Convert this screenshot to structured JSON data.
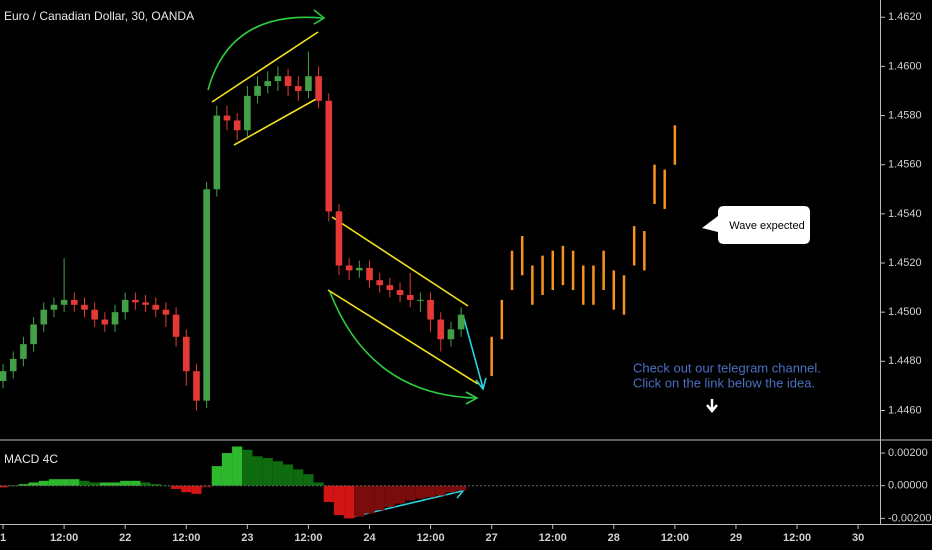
{
  "chart_data": [
    {
      "type": "candlestick",
      "title": "Euro / Canadian Dollar, 30, OANDA",
      "x": [
        0,
        2,
        4,
        6,
        8,
        10,
        12,
        14,
        16,
        18,
        20,
        22,
        24,
        26,
        28,
        30,
        32,
        34,
        36,
        38,
        40,
        42,
        44,
        46,
        48,
        50,
        52,
        54,
        56,
        58,
        60,
        62,
        64,
        66,
        68,
        70,
        72,
        74,
        76,
        78,
        80,
        82,
        84,
        86,
        88,
        90
      ],
      "open": [
        1.4472,
        1.4476,
        1.4481,
        1.4487,
        1.4495,
        1.4501,
        1.4503,
        1.4505,
        1.4503,
        1.4501,
        1.4497,
        1.4495,
        1.45,
        1.4505,
        1.4504,
        1.4503,
        1.4501,
        1.4499,
        1.449,
        1.4476,
        1.4464,
        1.455,
        1.458,
        1.4578,
        1.4574,
        1.4588,
        1.4592,
        1.4594,
        1.4596,
        1.4592,
        1.459,
        1.4596,
        1.4586,
        1.4541,
        1.4519,
        1.4517,
        1.4518,
        1.4513,
        1.4511,
        1.4509,
        1.4507,
        1.4505,
        1.4505,
        1.4497,
        1.4489,
        1.4493
      ],
      "high": [
        1.4479,
        1.4484,
        1.449,
        1.4498,
        1.4504,
        1.4506,
        1.4522,
        1.4508,
        1.4506,
        1.4504,
        1.45,
        1.4503,
        1.4508,
        1.4508,
        1.4507,
        1.4506,
        1.4504,
        1.4502,
        1.4493,
        1.4479,
        1.4553,
        1.4584,
        1.4584,
        1.4581,
        1.4592,
        1.4596,
        1.4598,
        1.46,
        1.4599,
        1.4596,
        1.4606,
        1.46,
        1.4589,
        1.4544,
        1.4522,
        1.4521,
        1.4521,
        1.4516,
        1.4514,
        1.4512,
        1.4516,
        1.4508,
        1.4508,
        1.45,
        1.4496,
        1.4502
      ],
      "low": [
        1.4469,
        1.4473,
        1.4478,
        1.4484,
        1.4492,
        1.4498,
        1.45,
        1.45,
        1.4498,
        1.4494,
        1.4492,
        1.4492,
        1.4497,
        1.4501,
        1.45,
        1.4498,
        1.4494,
        1.4486,
        1.447,
        1.446,
        1.4461,
        1.4547,
        1.4574,
        1.457,
        1.4571,
        1.4585,
        1.4589,
        1.459,
        1.4588,
        1.4586,
        1.4587,
        1.4583,
        1.4537,
        1.4515,
        1.4513,
        1.4514,
        1.451,
        1.4508,
        1.4506,
        1.4504,
        1.4502,
        1.45,
        1.4492,
        1.4484,
        1.4486,
        1.449
      ],
      "close": [
        1.4476,
        1.4481,
        1.4487,
        1.4495,
        1.4501,
        1.4503,
        1.4505,
        1.4503,
        1.4501,
        1.4497,
        1.4495,
        1.45,
        1.4505,
        1.4504,
        1.4503,
        1.4501,
        1.4499,
        1.449,
        1.4476,
        1.4464,
        1.455,
        1.458,
        1.4578,
        1.4574,
        1.4588,
        1.4592,
        1.4594,
        1.4596,
        1.4592,
        1.459,
        1.4596,
        1.4586,
        1.4541,
        1.4519,
        1.4517,
        1.4518,
        1.4513,
        1.4511,
        1.4509,
        1.4507,
        1.4505,
        1.4505,
        1.4497,
        1.4489,
        1.4493,
        1.4499
      ],
      "up_color": "#43a047",
      "down_color": "#e53935",
      "projection_x": [
        96,
        98,
        100,
        102,
        104,
        106,
        108,
        110,
        112,
        114,
        116,
        118,
        120,
        122,
        124,
        126,
        128,
        130,
        132
      ],
      "projection_high": [
        1.449,
        1.4505,
        1.4525,
        1.4531,
        1.4519,
        1.4523,
        1.4525,
        1.4527,
        1.4525,
        1.4519,
        1.4519,
        1.4525,
        1.4517,
        1.4515,
        1.4535,
        1.4533,
        1.456,
        1.4558,
        1.4576
      ],
      "projection_low": [
        1.4474,
        1.4489,
        1.4509,
        1.4515,
        1.4503,
        1.4507,
        1.4509,
        1.4511,
        1.4509,
        1.4503,
        1.4503,
        1.4509,
        1.4501,
        1.4499,
        1.4519,
        1.4517,
        1.4544,
        1.4542,
        1.456
      ],
      "projection_color": "#f7931e",
      "annotations": [
        "Wave expected",
        "Check out our telegram channel.",
        "Click on the link below the idea."
      ],
      "xlim": [
        -0.6,
        172.3
      ],
      "xticks": [
        {
          "value": 0,
          "label": "1"
        },
        {
          "value": 12,
          "label": "12:00"
        },
        {
          "value": 24,
          "label": "22"
        },
        {
          "value": 36,
          "label": "12:00"
        },
        {
          "value": 48,
          "label": "23"
        },
        {
          "value": 60,
          "label": "12:00"
        },
        {
          "value": 72,
          "label": "24"
        },
        {
          "value": 84,
          "label": "12:00"
        },
        {
          "value": 96,
          "label": "27"
        },
        {
          "value": 108,
          "label": "12:00"
        },
        {
          "value": 120,
          "label": "28"
        },
        {
          "value": 132,
          "label": "12:00"
        },
        {
          "value": 144,
          "label": "29"
        },
        {
          "value": 156,
          "label": "12:00"
        },
        {
          "value": 168,
          "label": "30"
        }
      ],
      "ylim": [
        1.4448,
        1.4627
      ],
      "yticks": [
        {
          "value": 1.446,
          "label": "1.4460"
        },
        {
          "value": 1.448,
          "label": "1.4480"
        },
        {
          "value": 1.45,
          "label": "1.4500"
        },
        {
          "value": 1.452,
          "label": "1.4520"
        },
        {
          "value": 1.454,
          "label": "1.4540"
        },
        {
          "value": 1.456,
          "label": "1.4560"
        },
        {
          "value": 1.458,
          "label": "1.4580"
        },
        {
          "value": 1.46,
          "label": "1.4600"
        },
        {
          "value": 1.462,
          "label": "1.4620"
        }
      ]
    },
    {
      "type": "histogram",
      "title": "MACD 4C",
      "x": [
        0,
        2,
        4,
        6,
        8,
        10,
        12,
        14,
        16,
        18,
        20,
        22,
        24,
        26,
        28,
        30,
        32,
        34,
        36,
        38,
        40,
        42,
        44,
        46,
        48,
        50,
        52,
        54,
        56,
        58,
        60,
        62,
        64,
        66,
        68,
        70,
        72,
        74,
        76,
        78,
        80,
        82,
        84,
        86,
        88,
        90
      ],
      "values": [
        -0.0001,
        0,
        0.0001,
        0.0002,
        0.0003,
        0.0004,
        0.0004,
        0.0004,
        0.0003,
        0.0002,
        0.0002,
        0.0002,
        0.0003,
        0.0003,
        0.0002,
        0.0001,
        0,
        -0.0002,
        -0.0004,
        -0.0005,
        -0.0001,
        0.0012,
        0.002,
        0.0024,
        0.0022,
        0.0018,
        0.0017,
        0.0015,
        0.0013,
        0.001,
        0.0007,
        0.0002,
        -0.001,
        -0.0018,
        -0.002,
        -0.0019,
        -0.0017,
        -0.0015,
        -0.0013,
        -0.0011,
        -0.0009,
        -0.0008,
        -0.0007,
        -0.0006,
        -0.0004,
        -0.0003
      ],
      "xlim": [
        -0.6,
        172.3
      ],
      "ylim": [
        -0.0021,
        0.0028
      ],
      "yticks": [
        {
          "value": -0.002,
          "label": "-0.00200"
        },
        {
          "value": 0,
          "label": "0.00000"
        },
        {
          "value": 0.002,
          "label": "0.00200"
        }
      ]
    }
  ]
}
